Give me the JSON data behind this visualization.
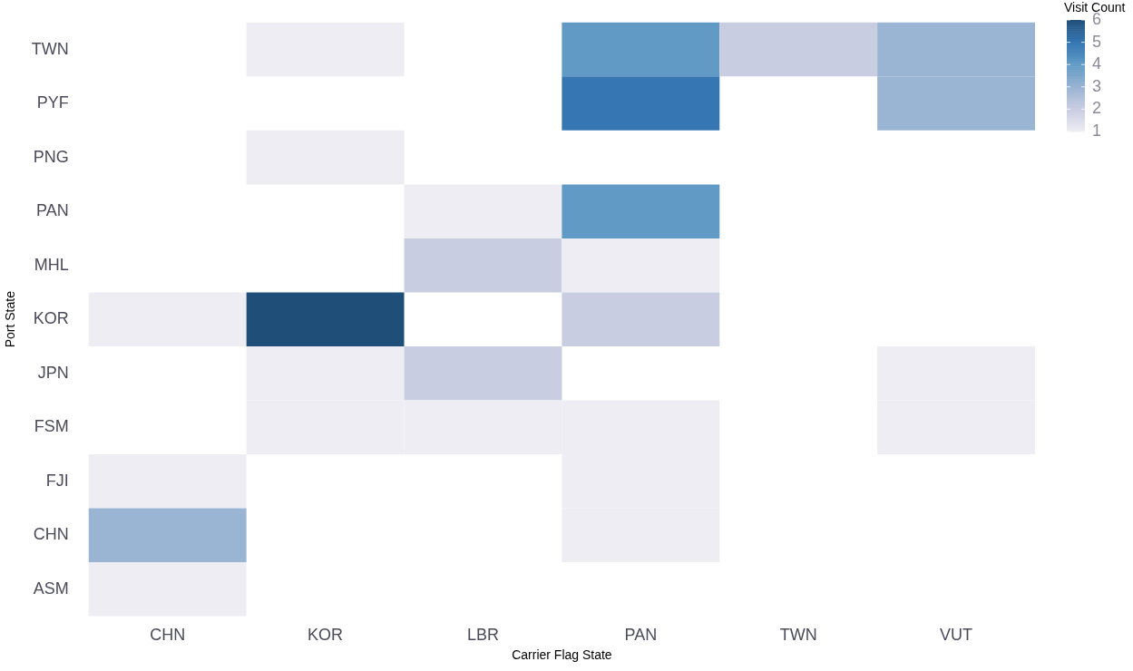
{
  "chart_data": {
    "type": "heatmap",
    "xlabel": "Carrier Flag State",
    "ylabel": "Port State",
    "clabel": "Visit Count",
    "categories": [
      "CHN",
      "KOR",
      "LBR",
      "PAN",
      "TWN",
      "VUT"
    ],
    "y_categories": [
      "TWN",
      "PYF",
      "PNG",
      "PAN",
      "MHL",
      "KOR",
      "JPN",
      "FSM",
      "FJI",
      "CHN",
      "ASM"
    ],
    "cells": [
      [
        null,
        1,
        null,
        4,
        2,
        3
      ],
      [
        null,
        null,
        null,
        5,
        null,
        3
      ],
      [
        null,
        1,
        null,
        null,
        null,
        null
      ],
      [
        null,
        null,
        1,
        4,
        null,
        null
      ],
      [
        null,
        null,
        2,
        1,
        null,
        null
      ],
      [
        1,
        6,
        null,
        2,
        null,
        null
      ],
      [
        null,
        1,
        2,
        null,
        null,
        1
      ],
      [
        null,
        1,
        1,
        1,
        null,
        1
      ],
      [
        1,
        null,
        null,
        1,
        null,
        null
      ],
      [
        3,
        null,
        null,
        1,
        null,
        null
      ],
      [
        1,
        null,
        null,
        null,
        null,
        null
      ]
    ],
    "clim": [
      1,
      6
    ],
    "cticks": [
      1,
      2,
      3,
      4,
      5,
      6
    ],
    "colors": [
      "#eeedf4",
      "#c9cde1",
      "#9ab4d3",
      "#619bc5",
      "#3677b3",
      "#1f4e79"
    ]
  }
}
